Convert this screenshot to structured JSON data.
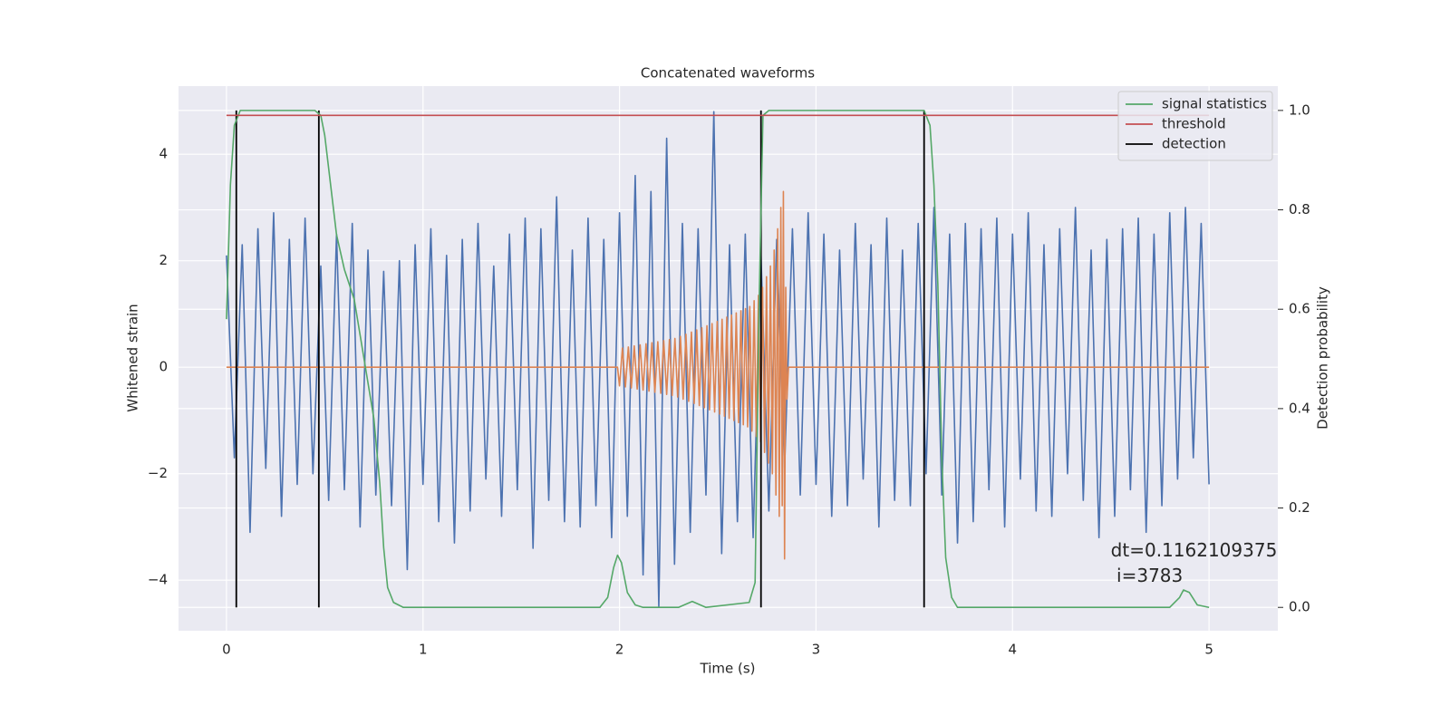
{
  "chart_data": {
    "type": "line",
    "title": "Concatenated waveforms",
    "xlabel": "Time (s)",
    "ylabel": "Whitened strain",
    "y2label": "Detection probability",
    "xlim": [
      -0.244,
      5.35
    ],
    "ylim": [
      -4.95,
      5.28
    ],
    "y2lim": [
      -0.047,
      1.049
    ],
    "xticks": [
      0,
      1,
      2,
      3,
      4,
      5
    ],
    "yticks": [
      {
        "value": -4,
        "label": "−4"
      },
      {
        "value": -2,
        "label": "−2"
      },
      0,
      2,
      4
    ],
    "y2ticks": [
      {
        "value": 0,
        "label": "0.0"
      },
      0.2,
      0.4,
      0.6,
      0.8,
      {
        "value": 1,
        "label": "1.0"
      }
    ],
    "grid": true,
    "legend": "upper right",
    "background": "#eaeaf2",
    "series": [
      {
        "kind": "line",
        "color": "#4c72b0",
        "x": [
          0,
          0.04,
          0.08,
          0.12,
          0.16,
          0.2,
          0.24,
          0.28,
          0.32,
          0.36,
          0.4,
          0.44,
          0.48,
          0.52,
          0.56,
          0.6,
          0.64,
          0.68,
          0.72,
          0.76,
          0.8,
          0.84,
          0.88,
          0.92,
          0.96,
          1,
          1.04,
          1.08,
          1.12,
          1.16,
          1.2,
          1.24,
          1.28,
          1.32,
          1.36,
          1.4,
          1.44,
          1.48,
          1.52,
          1.56,
          1.6,
          1.64,
          1.68,
          1.72,
          1.76,
          1.8,
          1.84,
          1.88,
          1.92,
          1.96,
          2,
          2.04,
          2.08,
          2.12,
          2.16,
          2.2,
          2.24,
          2.28,
          2.32,
          2.36,
          2.4,
          2.44,
          2.48,
          2.52,
          2.56,
          2.6,
          2.64,
          2.68,
          2.72,
          2.76,
          2.8,
          2.84,
          2.88,
          2.92,
          2.96,
          3,
          3.04,
          3.08,
          3.12,
          3.16,
          3.2,
          3.24,
          3.28,
          3.32,
          3.36,
          3.4,
          3.44,
          3.48,
          3.52,
          3.56,
          3.6,
          3.64,
          3.68,
          3.72,
          3.76,
          3.8,
          3.84,
          3.88,
          3.92,
          3.96,
          4,
          4.04,
          4.08,
          4.12,
          4.16,
          4.2,
          4.24,
          4.28,
          4.32,
          4.36,
          4.4,
          4.44,
          4.48,
          4.52,
          4.56,
          4.6,
          4.64,
          4.68,
          4.72,
          4.76,
          4.8,
          4.84,
          4.88,
          4.92,
          4.96,
          5
        ],
        "values": [
          2.1,
          -1.7,
          2.3,
          -3.1,
          2.6,
          -1.9,
          2.9,
          -2.8,
          2.4,
          -2.2,
          2.8,
          -2.0,
          1.9,
          -2.5,
          2.5,
          -2.3,
          2.7,
          -3.0,
          2.2,
          -2.4,
          1.8,
          -2.6,
          2.0,
          -3.8,
          2.3,
          -2.2,
          2.6,
          -2.9,
          2.1,
          -3.3,
          2.4,
          -2.7,
          2.7,
          -2.1,
          1.9,
          -2.8,
          2.5,
          -2.3,
          2.8,
          -3.4,
          2.6,
          -2.5,
          3.2,
          -2.9,
          2.2,
          -3.0,
          2.8,
          -2.6,
          2.4,
          -3.2,
          2.9,
          -2.8,
          3.6,
          -3.9,
          3.3,
          -4.5,
          4.3,
          -3.7,
          2.7,
          -3.1,
          2.6,
          -2.4,
          4.8,
          -3.5,
          2.3,
          -2.9,
          2.5,
          -3.2,
          2.1,
          -2.7,
          2.4,
          -1.9,
          2.6,
          -2.4,
          2.9,
          -2.2,
          2.5,
          -2.8,
          2.2,
          -2.6,
          2.7,
          -2.1,
          2.3,
          -3.0,
          2.8,
          -2.5,
          2.2,
          -2.6,
          2.7,
          -2.0,
          3.0,
          -2.4,
          2.5,
          -3.3,
          2.7,
          -2.9,
          2.6,
          -2.3,
          2.8,
          -3.0,
          2.5,
          -2.1,
          2.9,
          -2.7,
          2.3,
          -2.8,
          2.6,
          -2.0,
          3.0,
          -2.5,
          2.2,
          -3.2,
          2.4,
          -2.8,
          2.6,
          -2.3,
          2.8,
          -3.1,
          2.5,
          -2.6,
          2.9,
          -2.1,
          3.0,
          -1.7,
          2.7,
          -2.2
        ]
      },
      {
        "kind": "line",
        "color": "#dd8452",
        "x": [
          0,
          1.99,
          2.0,
          2.015,
          2.03,
          2.045,
          2.06,
          2.075,
          2.09,
          2.105,
          2.12,
          2.135,
          2.15,
          2.165,
          2.18,
          2.195,
          2.21,
          2.225,
          2.24,
          2.254,
          2.268,
          2.282,
          2.296,
          2.31,
          2.324,
          2.338,
          2.352,
          2.366,
          2.38,
          2.393,
          2.406,
          2.419,
          2.432,
          2.445,
          2.458,
          2.471,
          2.484,
          2.497,
          2.51,
          2.522,
          2.534,
          2.546,
          2.558,
          2.57,
          2.582,
          2.594,
          2.606,
          2.618,
          2.63,
          2.641,
          2.652,
          2.663,
          2.674,
          2.685,
          2.696,
          2.707,
          2.718,
          2.728,
          2.738,
          2.748,
          2.758,
          2.768,
          2.778,
          2.787,
          2.796,
          2.805,
          2.813,
          2.821,
          2.828,
          2.834,
          2.84,
          2.846,
          2.852,
          2.86,
          5
        ],
        "values": [
          0,
          0,
          -0.35,
          0.36,
          -0.37,
          0.38,
          -0.39,
          0.4,
          -0.41,
          0.42,
          -0.43,
          0.44,
          -0.45,
          0.46,
          -0.47,
          0.48,
          -0.49,
          0.5,
          -0.51,
          0.52,
          -0.53,
          0.54,
          -0.56,
          0.58,
          -0.6,
          0.62,
          -0.64,
          0.66,
          -0.68,
          0.7,
          -0.72,
          0.74,
          -0.76,
          0.78,
          -0.8,
          0.82,
          -0.84,
          0.86,
          -0.88,
          0.9,
          -0.92,
          0.94,
          -0.96,
          0.98,
          -1.0,
          1.02,
          -1.04,
          1.06,
          -1.08,
          1.1,
          -1.12,
          1.14,
          -1.2,
          1.25,
          -1.3,
          1.35,
          -1.4,
          1.5,
          -1.6,
          1.7,
          -1.8,
          1.9,
          -2.0,
          2.2,
          -2.4,
          2.6,
          -2.8,
          3.0,
          -2.6,
          3.3,
          -3.6,
          1.5,
          -0.6,
          0,
          0
        ]
      },
      {
        "kind": "vline",
        "name": "detection",
        "color": "#000000",
        "axis": "y2",
        "x": [
          0.05,
          0.47,
          2.72,
          3.55
        ],
        "span": [
          0,
          1
        ]
      },
      {
        "kind": "line",
        "name": "signal statistics",
        "color": "#55a868",
        "axis": "y2",
        "x": [
          0,
          0.02,
          0.04,
          0.07,
          0.1,
          0.45,
          0.48,
          0.5,
          0.53,
          0.56,
          0.6,
          0.65,
          0.7,
          0.75,
          0.78,
          0.8,
          0.82,
          0.85,
          0.9,
          1.9,
          1.94,
          1.97,
          1.99,
          2.01,
          2.04,
          2.08,
          2.12,
          2.3,
          2.37,
          2.44,
          2.66,
          2.69,
          2.71,
          2.73,
          2.76,
          3.55,
          3.58,
          3.6,
          3.62,
          3.64,
          3.66,
          3.69,
          3.72,
          4.8,
          4.85,
          4.87,
          4.9,
          4.94,
          5
        ],
        "values": [
          0.58,
          0.85,
          0.97,
          1.0,
          1.0,
          1.0,
          0.99,
          0.95,
          0.85,
          0.75,
          0.68,
          0.62,
          0.5,
          0.38,
          0.25,
          0.12,
          0.04,
          0.01,
          0,
          0,
          0.02,
          0.08,
          0.105,
          0.09,
          0.03,
          0.005,
          0,
          0,
          0.012,
          0,
          0.01,
          0.05,
          0.6,
          0.99,
          1.0,
          1.0,
          0.97,
          0.85,
          0.65,
          0.3,
          0.1,
          0.02,
          0,
          0,
          0.02,
          0.035,
          0.03,
          0.005,
          0
        ]
      },
      {
        "kind": "line",
        "name": "threshold",
        "color": "#c44e52",
        "axis": "y2",
        "x": [
          0,
          5
        ],
        "values": [
          0.99,
          0.99
        ]
      }
    ],
    "legend_order": [
      3,
      4,
      2
    ],
    "annotation": {
      "lines": [
        "dt=0.1162109375",
        " i=3783"
      ],
      "x": 4.5,
      "y": -3.46
    }
  }
}
